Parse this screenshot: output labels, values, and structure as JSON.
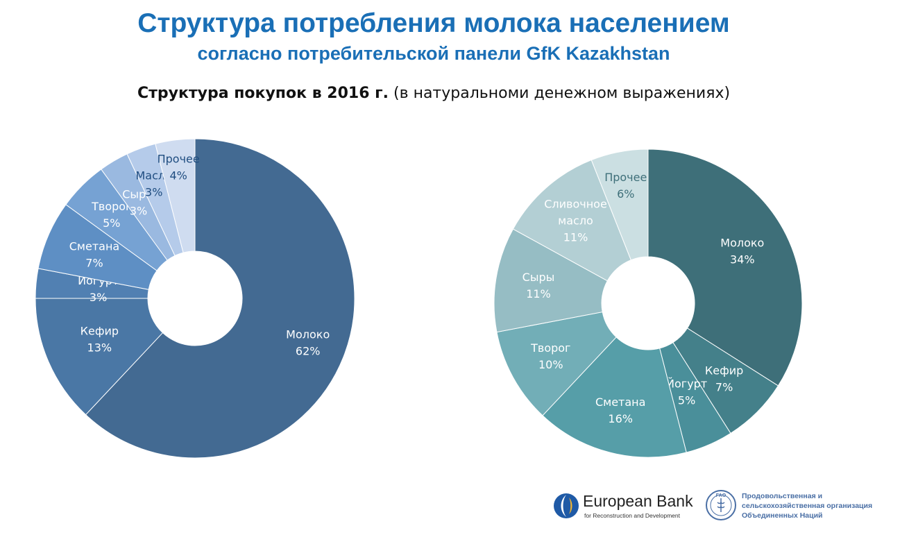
{
  "header": {
    "title": "Структура потребления молока населением",
    "subtitle": "согласно потребительской панели GfK Kazakhstan",
    "chart_heading_bold": "Структура покупок в 2016 г.",
    "chart_heading_rest": " (в натуральноми денежном выражениях)"
  },
  "chart_data": [
    {
      "type": "pie",
      "categories": [
        "Молоко",
        "Кефир",
        "Йогурт",
        "Сметана",
        "Творог",
        "Сыры",
        "Масло",
        "Прочее"
      ],
      "values": [
        62,
        13,
        3,
        7,
        5,
        3,
        3,
        4
      ],
      "value_labels": [
        "62%",
        "13%",
        "3%",
        "7%",
        "5%",
        "3%",
        "3%",
        "4%"
      ],
      "colors": [
        "#436a92",
        "#4a77a5",
        "#5180b2",
        "#5e8fc4",
        "#76a2d3",
        "#9ab9e0",
        "#b5cbea",
        "#cfdcf0"
      ],
      "donut": true
    },
    {
      "type": "pie",
      "categories": [
        "Молоко",
        "Кефир",
        "Йогурт",
        "Сметана",
        "Творог",
        "Сыры",
        "Сливочное масло",
        "Прочее"
      ],
      "values": [
        34,
        7,
        5,
        16,
        10,
        11,
        11,
        6
      ],
      "value_labels": [
        "34%",
        "7%",
        "5%",
        "16%",
        "10%",
        "11%",
        "11%",
        "6%"
      ],
      "colors": [
        "#3e6f79",
        "#44808a",
        "#4a8f9a",
        "#569ea8",
        "#72aeb7",
        "#96bdc4",
        "#b3cfd4",
        "#cbdfe2"
      ],
      "donut": true
    }
  ],
  "footer": {
    "ebrd_name": "European Bank",
    "ebrd_sub": "for Reconstruction and Development",
    "fao_line1": "Продовольственная и",
    "fao_line2": "сельскохозяйственная организация",
    "fao_line3": "Объединенных Наций",
    "fao_logo_text": "FAO"
  }
}
